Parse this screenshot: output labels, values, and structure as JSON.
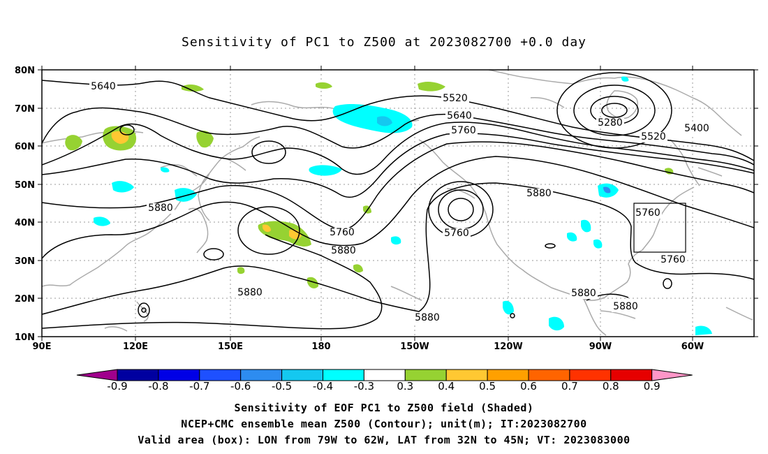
{
  "title": "Sensitivity of PC1 to Z500 at 2023082700 +0.0 day",
  "lat_labels": [
    "80N",
    "70N",
    "60N",
    "50N",
    "40N",
    "30N",
    "20N",
    "10N"
  ],
  "lon_labels": [
    "90E",
    "120E",
    "150E",
    "180",
    "150W",
    "120W",
    "90W",
    "60W"
  ],
  "contour_labels": [
    "5640",
    "5520",
    "5640",
    "5760",
    "5280",
    "5520",
    "5400",
    "5760",
    "5880",
    "5760",
    "5760",
    "5880",
    "5880",
    "5760",
    "5880",
    "5880",
    "5880",
    "5880"
  ],
  "colorbar": {
    "labels": [
      "-0.9",
      "-0.8",
      "-0.7",
      "-0.6",
      "-0.5",
      "-0.4",
      "-0.3",
      "0.3",
      "0.4",
      "0.5",
      "0.6",
      "0.7",
      "0.8",
      "0.9"
    ],
    "colors": [
      "#a0008c",
      "#0000a0",
      "#0000e6",
      "#1e50ff",
      "#2d8cf0",
      "#14c8f0",
      "#00ffff",
      "#ffffff",
      "#96d232",
      "#ffc832",
      "#ffa000",
      "#ff6400",
      "#ff3200",
      "#e60000",
      "#ff96c8"
    ]
  },
  "footer": {
    "line1": "Sensitivity of EOF PC1 to Z500 field (Shaded)",
    "line2": "NCEP+CMC ensemble mean Z500 (Contour); unit(m); IT:2023082700",
    "line3": "Valid area (box): LON from 79W to 62W, LAT from 32N to 45N; VT: 2023083000"
  }
}
